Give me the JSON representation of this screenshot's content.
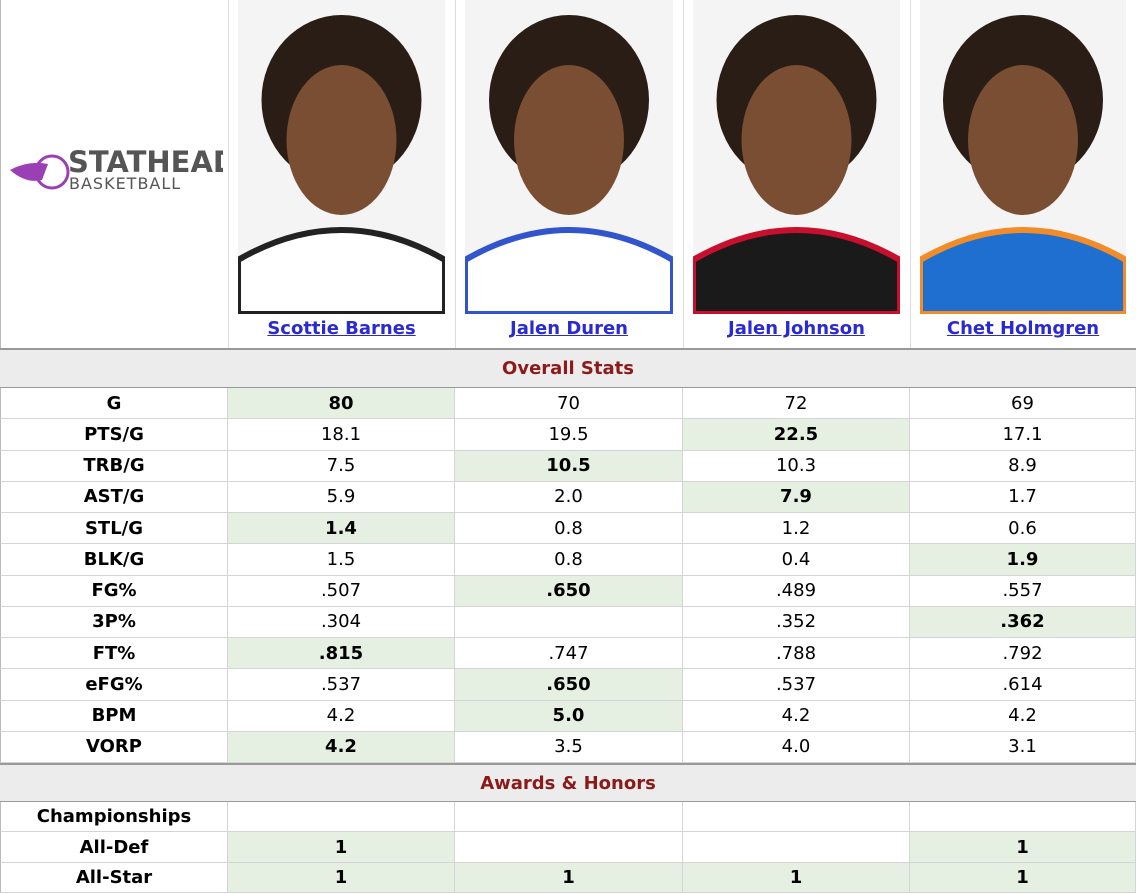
{
  "logo": {
    "title": "STATHEAD",
    "subtitle": "BASKETBALL"
  },
  "players": [
    "Scottie Barnes",
    "Jalen Duren",
    "Jalen Johnson",
    "Chet Holmgren"
  ],
  "sections": [
    {
      "title": "Overall Stats",
      "rows": [
        {
          "label": "G",
          "values": [
            "80",
            "70",
            "72",
            "69"
          ],
          "leader": [
            0
          ]
        },
        {
          "label": "PTS/G",
          "values": [
            "18.1",
            "19.5",
            "22.5",
            "17.1"
          ],
          "leader": [
            2
          ]
        },
        {
          "label": "TRB/G",
          "values": [
            "7.5",
            "10.5",
            "10.3",
            "8.9"
          ],
          "leader": [
            1
          ]
        },
        {
          "label": "AST/G",
          "values": [
            "5.9",
            "2.0",
            "7.9",
            "1.7"
          ],
          "leader": [
            2
          ]
        },
        {
          "label": "STL/G",
          "values": [
            "1.4",
            "0.8",
            "1.2",
            "0.6"
          ],
          "leader": [
            0
          ]
        },
        {
          "label": "BLK/G",
          "values": [
            "1.5",
            "0.8",
            "0.4",
            "1.9"
          ],
          "leader": [
            3
          ]
        },
        {
          "label": "FG%",
          "values": [
            ".507",
            ".650",
            ".489",
            ".557"
          ],
          "leader": [
            1
          ]
        },
        {
          "label": "3P%",
          "values": [
            ".304",
            null,
            ".352",
            ".362"
          ],
          "leader": [
            3
          ]
        },
        {
          "label": "FT%",
          "values": [
            ".815",
            ".747",
            ".788",
            ".792"
          ],
          "leader": [
            0
          ]
        },
        {
          "label": "eFG%",
          "values": [
            ".537",
            ".650",
            ".537",
            ".614"
          ],
          "leader": [
            1
          ]
        },
        {
          "label": "BPM",
          "values": [
            "4.2",
            "5.0",
            "4.2",
            "4.2"
          ],
          "leader": [
            1
          ]
        },
        {
          "label": "VORP",
          "values": [
            "4.2",
            "3.5",
            "4.0",
            "3.1"
          ],
          "leader": [
            0
          ]
        }
      ]
    },
    {
      "title": "Awards & Honors",
      "rows": [
        {
          "label": "Championships",
          "values": [
            null,
            null,
            null,
            null
          ],
          "leader": []
        },
        {
          "label": "All-Def",
          "values": [
            "1",
            null,
            null,
            "1"
          ],
          "leader": [
            0,
            3
          ]
        },
        {
          "label": "All-Star",
          "values": [
            "1",
            "1",
            "1",
            "1"
          ],
          "leader": [
            0,
            1,
            2,
            3
          ]
        }
      ]
    }
  ]
}
